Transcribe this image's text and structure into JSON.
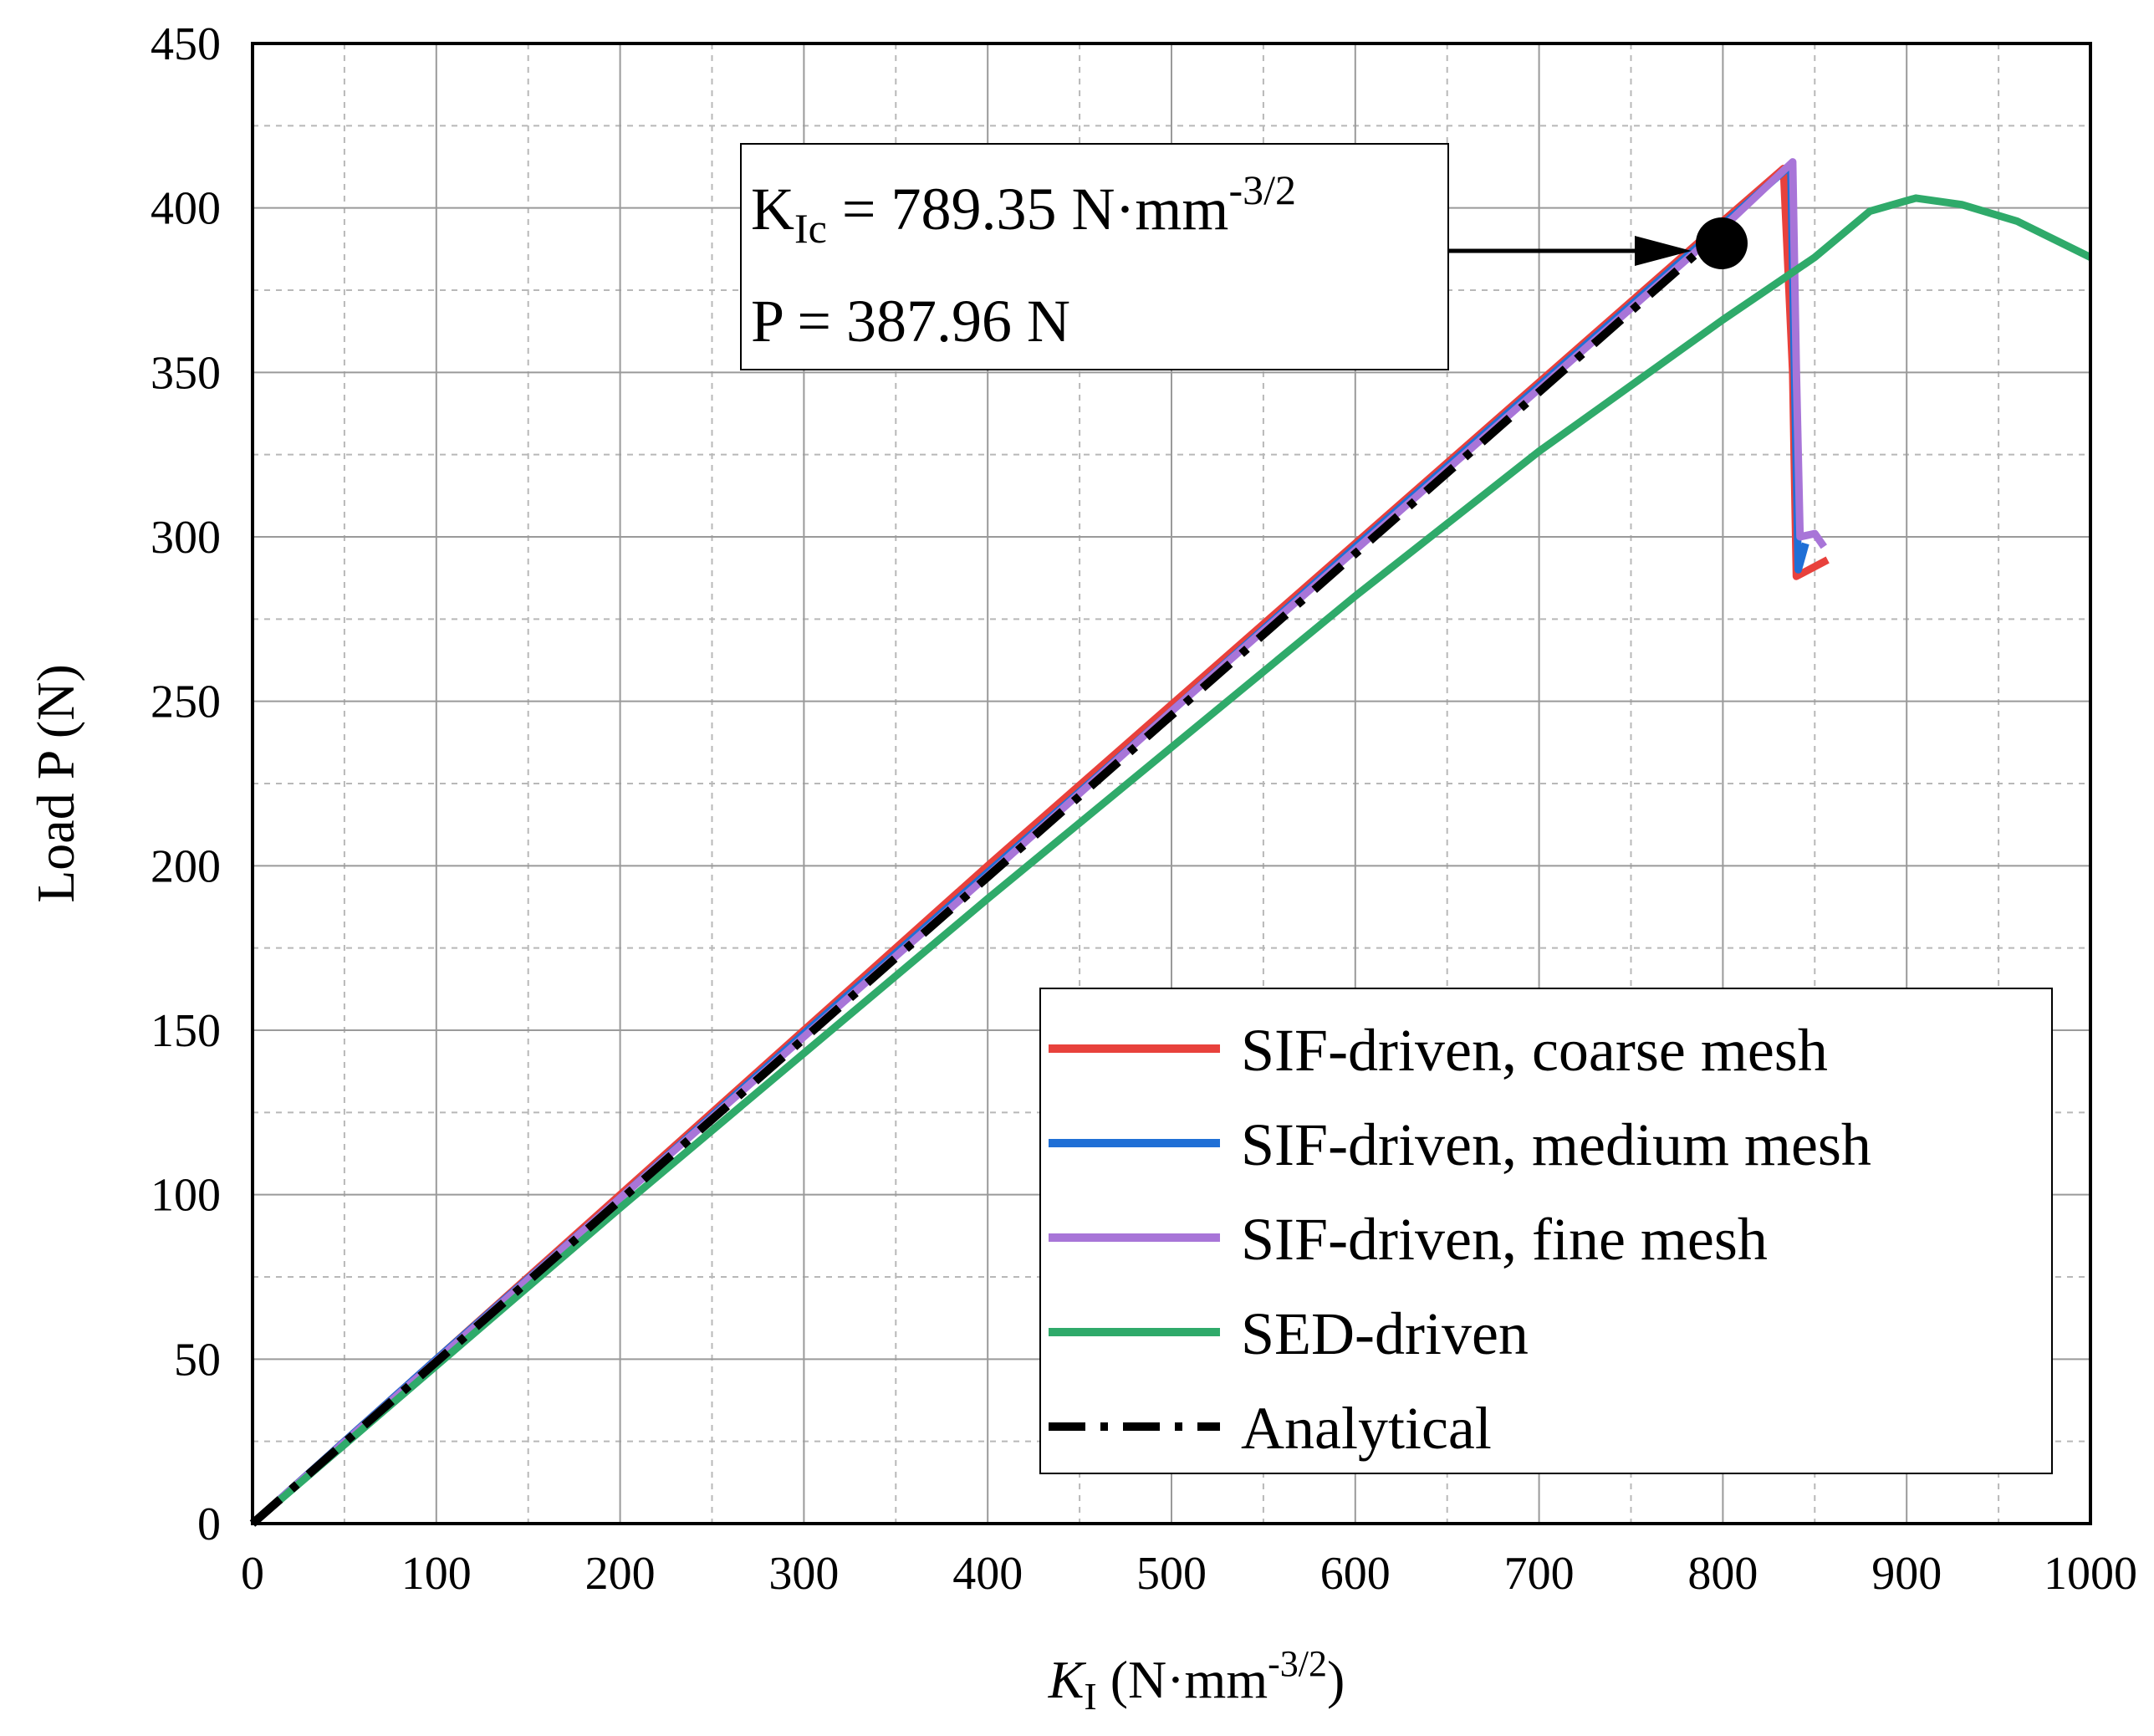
{
  "chart_data": {
    "type": "line",
    "xlabel_main": "K",
    "xlabel_sub": "I",
    "xlabel_unit_pre": " (N·mm",
    "xlabel_unit_sup": "-3/2",
    "xlabel_unit_post": ")",
    "ylabel": "Load P (N)",
    "xlim": [
      0,
      1000
    ],
    "ylim": [
      0,
      450
    ],
    "xticks": [
      0,
      100,
      200,
      300,
      400,
      500,
      600,
      700,
      800,
      900,
      1000
    ],
    "yticks": [
      0,
      50,
      100,
      150,
      200,
      250,
      300,
      350,
      400,
      450
    ],
    "grid": true,
    "legend_position": "bottom-right",
    "series": [
      {
        "name": "SIF-driven, coarse mesh",
        "color": "#e8413c",
        "style": "solid",
        "x": [
          0,
          100,
          200,
          300,
          400,
          500,
          600,
          700,
          800,
          833,
          838,
          840,
          857
        ],
        "y": [
          0,
          50,
          100,
          150,
          200,
          249,
          298,
          347,
          396,
          412,
          350,
          288,
          293
        ]
      },
      {
        "name": "SIF-driven, medium mesh",
        "color": "#1f6fd6",
        "style": "solid",
        "x": [
          0,
          100,
          200,
          300,
          400,
          500,
          600,
          700,
          800,
          837,
          839,
          841,
          845
        ],
        "y": [
          0,
          50,
          99,
          149,
          198,
          247,
          297,
          346,
          395,
          413,
          350,
          290,
          298
        ]
      },
      {
        "name": "SIF-driven, fine mesh",
        "color": "#a875d8",
        "style": "solid",
        "x": [
          0,
          100,
          200,
          300,
          400,
          500,
          600,
          700,
          800,
          838,
          840,
          842,
          850,
          855
        ],
        "y": [
          0,
          49.5,
          99,
          148,
          197,
          247,
          296,
          345,
          394,
          414,
          350,
          300,
          301,
          297
        ]
      },
      {
        "name": "SED-driven",
        "color": "#2faa6a",
        "style": "solid",
        "x": [
          0,
          100,
          200,
          300,
          400,
          500,
          600,
          700,
          800,
          850,
          880,
          905,
          930,
          960,
          1000
        ],
        "y": [
          0,
          48,
          96,
          143,
          190,
          236,
          282,
          326,
          366,
          385,
          399,
          403,
          401,
          396,
          385
        ]
      },
      {
        "name": "Analytical",
        "color": "#000000",
        "style": "dashdot",
        "x": [
          0,
          789.35
        ],
        "y": [
          0,
          387.96
        ]
      }
    ],
    "annotation": {
      "line1_main": "K",
      "line1_sub": "Ic",
      "line1_rest": " = 789.35 N·mm",
      "line1_sup": "-3/2",
      "line2": "P = 387.96 N",
      "point": [
        789.35,
        387.96
      ]
    }
  }
}
